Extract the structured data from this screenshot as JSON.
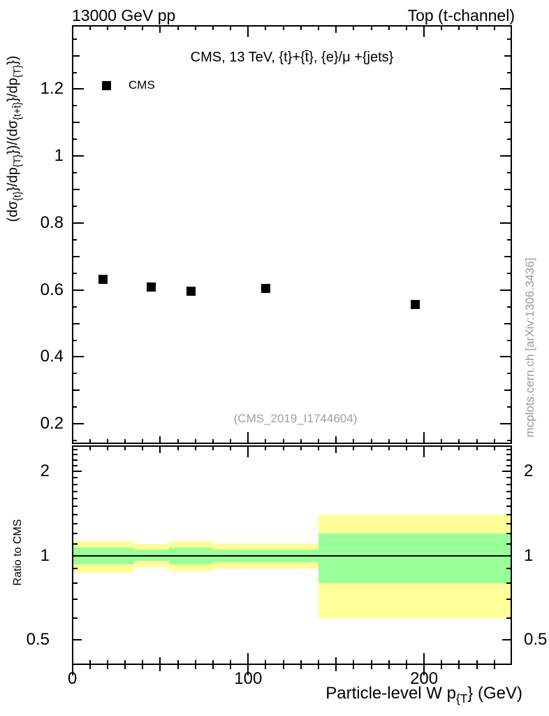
{
  "header": {
    "left": "13000 GeV pp",
    "right": "Top (t-channel)"
  },
  "chart_data": {
    "type": "scatter",
    "title": "CMS, 13 TeV, {t}+{t̄}, {e}/μ +{jets}",
    "watermark": "(CMS_2019_I1744604)",
    "side_note": "mcplots.cern.ch [arXiv:1306.3436]",
    "xlabel_parts": {
      "pre": "Particle-level W p",
      "sub": "{T",
      "post": "} (GeV)"
    },
    "ylabel_parts": {
      "p1": "(dσ",
      "s1": "{t}",
      "p2": "}/dp",
      "s2": "{T}",
      "p3": "})/(dσ",
      "s3": "{t+t̄}",
      "p4": "}/dp",
      "s4": "{T}",
      "p5": "})"
    },
    "xlim": [
      0,
      250
    ],
    "x_ticks": {
      "major": [
        0,
        100,
        200
      ],
      "major_labels": [
        "0",
        "100",
        "200"
      ],
      "mid": [
        50,
        150
      ],
      "minor_step": 10
    },
    "main": {
      "ylim": [
        0.141,
        1.389
      ],
      "major_ticks": [
        0.2,
        0.4,
        0.6,
        0.8,
        1.0,
        1.2
      ],
      "tick_labels": [
        "0.2",
        "0.4",
        "0.6",
        "0.8",
        "1",
        "1.2"
      ],
      "mid_ticks": [
        0.3,
        0.5,
        0.7,
        0.9,
        1.1,
        1.3
      ],
      "minor_step": 0.05,
      "grid": false
    },
    "series": [
      {
        "name": "CMS",
        "marker": "filled-square",
        "color": "#000000",
        "x": [
          17.5,
          45,
          67.5,
          110,
          195
        ],
        "y": [
          0.632,
          0.609,
          0.596,
          0.605,
          0.556
        ]
      }
    ],
    "ratio": {
      "ylabel": "Ratio to CMS",
      "scale": "log",
      "ylim": [
        0.41,
        2.48
      ],
      "major_ticks": [
        0.5,
        1,
        2
      ],
      "tick_labels": [
        "0.5",
        "1",
        "2"
      ],
      "minor_ticks": [
        0.6,
        0.7,
        0.8,
        0.9,
        1.1,
        1.2,
        1.3,
        1.4,
        1.5,
        1.6,
        1.7,
        1.8,
        1.9,
        2.1,
        2.2,
        2.3,
        2.4
      ],
      "reference_line": 1,
      "band_colors": {
        "outer": "#ffff99",
        "inner": "#99ff99"
      },
      "bins": [
        {
          "x0": 0,
          "x1": 35,
          "yellow": [
            0.87,
            1.13
          ],
          "green": [
            0.935,
            1.07
          ]
        },
        {
          "x0": 35,
          "x1": 55,
          "yellow": [
            0.91,
            1.1
          ],
          "green": [
            0.96,
            1.055
          ]
        },
        {
          "x0": 55,
          "x1": 80,
          "yellow": [
            0.88,
            1.13
          ],
          "green": [
            0.935,
            1.07
          ]
        },
        {
          "x0": 80,
          "x1": 140,
          "yellow": [
            0.9,
            1.11
          ],
          "green": [
            0.95,
            1.055
          ]
        },
        {
          "x0": 140,
          "x1": 250,
          "yellow": [
            0.6,
            1.4
          ],
          "green": [
            0.8,
            1.2
          ]
        }
      ]
    }
  }
}
